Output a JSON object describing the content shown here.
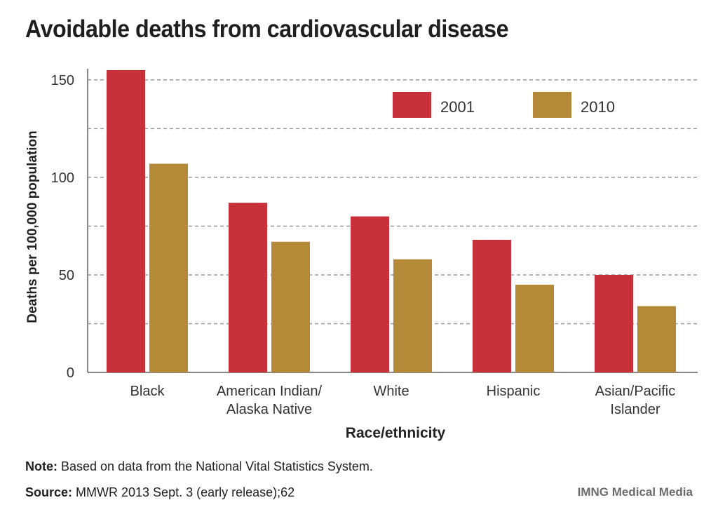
{
  "chart_data": {
    "type": "bar",
    "title": "Avoidable deaths from cardiovascular disease",
    "xlabel": "Race/ethnicity",
    "ylabel": "Deaths per 100,000 population",
    "ylim": [
      0,
      155
    ],
    "yticks": [
      0,
      50,
      100,
      150
    ],
    "grid": true,
    "legend_position": "top-right",
    "categories": [
      [
        "Black"
      ],
      [
        "American Indian/",
        "Alaska Native"
      ],
      [
        "White"
      ],
      [
        "Hispanic"
      ],
      [
        "Asian/Pacific",
        "Islander"
      ]
    ],
    "series": [
      {
        "name": "2001",
        "color": "#c8303a",
        "values": [
          155,
          87,
          80,
          68,
          50
        ]
      },
      {
        "name": "2010",
        "color": "#b48a38",
        "values": [
          107,
          67,
          58,
          45,
          34
        ]
      }
    ]
  },
  "note": {
    "label": "Note:",
    "text": " Based on data from the National Vital Statistics System."
  },
  "source": {
    "label": "Source:",
    "text": " MMWR 2013 Sept. 3 (early release);62"
  },
  "credit": "IMNG Medical Media"
}
